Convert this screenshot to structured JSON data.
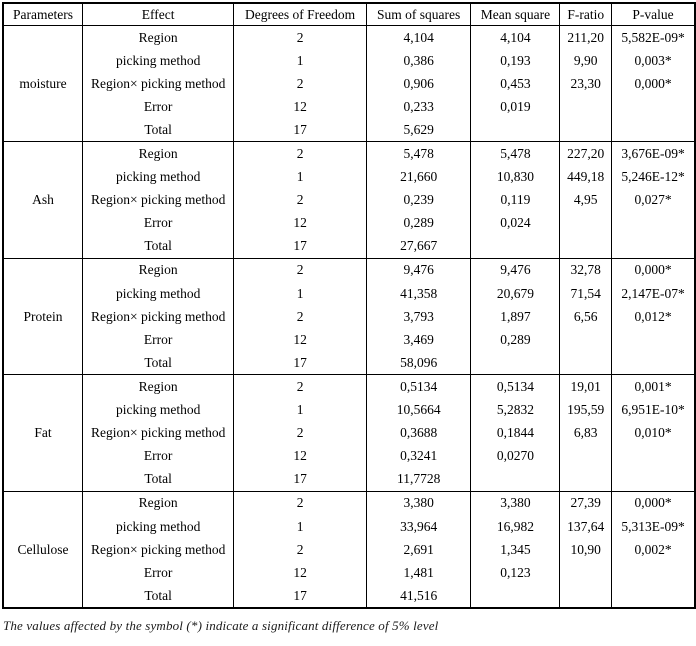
{
  "table": {
    "headers": [
      "Parameters",
      "Effect",
      "Degrees of Freedom",
      "Sum of squares",
      "Mean square",
      "F-ratio",
      "P-value"
    ],
    "groups": [
      {
        "parameter": "moisture",
        "rows": [
          {
            "effect": "Region",
            "df": "2",
            "sum_sq": "4,104",
            "mean_sq": "4,104",
            "f_ratio": "211,20",
            "p_value": "5,582E-09*"
          },
          {
            "effect": "picking method",
            "df": "1",
            "sum_sq": "0,386",
            "mean_sq": "0,193",
            "f_ratio": "9,90",
            "p_value": "0,003*"
          },
          {
            "effect": "Region× picking method",
            "df": "2",
            "sum_sq": "0,906",
            "mean_sq": "0,453",
            "f_ratio": "23,30",
            "p_value": "0,000*"
          },
          {
            "effect": "Error",
            "df": "12",
            "sum_sq": "0,233",
            "mean_sq": "0,019",
            "f_ratio": "",
            "p_value": ""
          },
          {
            "effect": "Total",
            "df": "17",
            "sum_sq": "5,629",
            "mean_sq": "",
            "f_ratio": "",
            "p_value": ""
          }
        ]
      },
      {
        "parameter": "Ash",
        "rows": [
          {
            "effect": "Region",
            "df": "2",
            "sum_sq": "5,478",
            "mean_sq": "5,478",
            "f_ratio": "227,20",
            "p_value": "3,676E-09*"
          },
          {
            "effect": "picking method",
            "df": "1",
            "sum_sq": "21,660",
            "mean_sq": "10,830",
            "f_ratio": "449,18",
            "p_value": "5,246E-12*"
          },
          {
            "effect": "Region× picking method",
            "df": "2",
            "sum_sq": "0,239",
            "mean_sq": "0,119",
            "f_ratio": "4,95",
            "p_value": "0,027*"
          },
          {
            "effect": "Error",
            "df": "12",
            "sum_sq": "0,289",
            "mean_sq": "0,024",
            "f_ratio": "",
            "p_value": ""
          },
          {
            "effect": "Total",
            "df": "17",
            "sum_sq": "27,667",
            "mean_sq": "",
            "f_ratio": "",
            "p_value": ""
          }
        ]
      },
      {
        "parameter": "Protein",
        "rows": [
          {
            "effect": "Region",
            "df": "2",
            "sum_sq": "9,476",
            "mean_sq": "9,476",
            "f_ratio": "32,78",
            "p_value": "0,000*"
          },
          {
            "effect": "picking method",
            "df": "1",
            "sum_sq": "41,358",
            "mean_sq": "20,679",
            "f_ratio": "71,54",
            "p_value": "2,147E-07*"
          },
          {
            "effect": "Region× picking method",
            "df": "2",
            "sum_sq": "3,793",
            "mean_sq": "1,897",
            "f_ratio": "6,56",
            "p_value": "0,012*"
          },
          {
            "effect": "Error",
            "df": "12",
            "sum_sq": "3,469",
            "mean_sq": "0,289",
            "f_ratio": "",
            "p_value": ""
          },
          {
            "effect": "Total",
            "df": "17",
            "sum_sq": "58,096",
            "mean_sq": "",
            "f_ratio": "",
            "p_value": ""
          }
        ]
      },
      {
        "parameter": "Fat",
        "rows": [
          {
            "effect": "Region",
            "df": "2",
            "sum_sq": "0,5134",
            "mean_sq": "0,5134",
            "f_ratio": "19,01",
            "p_value": "0,001*"
          },
          {
            "effect": "picking method",
            "df": "1",
            "sum_sq": "10,5664",
            "mean_sq": "5,2832",
            "f_ratio": "195,59",
            "p_value": "6,951E-10*"
          },
          {
            "effect": "Region× picking method",
            "df": "2",
            "sum_sq": "0,3688",
            "mean_sq": "0,1844",
            "f_ratio": "6,83",
            "p_value": "0,010*"
          },
          {
            "effect": "Error",
            "df": "12",
            "sum_sq": "0,3241",
            "mean_sq": "0,0270",
            "f_ratio": "",
            "p_value": ""
          },
          {
            "effect": "Total",
            "df": "17",
            "sum_sq": "11,7728",
            "mean_sq": "",
            "f_ratio": "",
            "p_value": ""
          }
        ]
      },
      {
        "parameter": "Cellulose",
        "rows": [
          {
            "effect": "Region",
            "df": "2",
            "sum_sq": "3,380",
            "mean_sq": "3,380",
            "f_ratio": "27,39",
            "p_value": "0,000*"
          },
          {
            "effect": "picking method",
            "df": "1",
            "sum_sq": "33,964",
            "mean_sq": "16,982",
            "f_ratio": "137,64",
            "p_value": "5,313E-09*"
          },
          {
            "effect": "Region× picking method",
            "df": "2",
            "sum_sq": "2,691",
            "mean_sq": "1,345",
            "f_ratio": "10,90",
            "p_value": "0,002*"
          },
          {
            "effect": "Error",
            "df": "12",
            "sum_sq": "1,481",
            "mean_sq": "0,123",
            "f_ratio": "",
            "p_value": ""
          },
          {
            "effect": "Total",
            "df": "17",
            "sum_sq": "41,516",
            "mean_sq": "",
            "f_ratio": "",
            "p_value": ""
          }
        ]
      }
    ],
    "footnote": "The values affected by the symbol (*) indicate a significant difference of 5% level"
  }
}
